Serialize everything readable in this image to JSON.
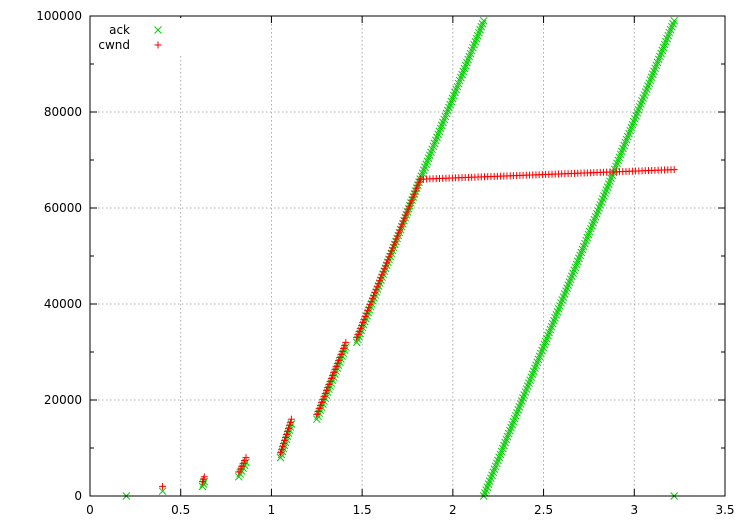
{
  "chart_data": {
    "type": "scatter",
    "title": "",
    "xlabel": "",
    "ylabel": "",
    "xlim": [
      0,
      3.5
    ],
    "ylim": [
      0,
      100000
    ],
    "xticks": [
      "0",
      "0.5",
      "1",
      "1.5",
      "2",
      "2.5",
      "3",
      "3.5"
    ],
    "yticks": [
      "0",
      "20000",
      "40000",
      "60000",
      "80000",
      "100000"
    ],
    "grid": true,
    "legend": "top-left",
    "series": [
      {
        "name": "ack",
        "marker": "x",
        "color": "#00cc00",
        "segments": [
          {
            "x": [
              0.2
            ],
            "y": [
              0
            ]
          },
          {
            "x": [
              0.4
            ],
            "y": [
              1000
            ]
          },
          {
            "x": [
              0.62,
              0.63
            ],
            "y": [
              2000,
              3000
            ]
          },
          {
            "x": [
              0.82,
              0.86
            ],
            "y": [
              4000,
              7000
            ]
          },
          {
            "x": [
              1.05,
              1.11
            ],
            "y": [
              8000,
              15000
            ]
          },
          {
            "x": [
              1.25,
              1.41
            ],
            "y": [
              16000,
              31000
            ]
          },
          {
            "x": [
              1.47,
              1.82
            ],
            "y": [
              32000,
              66000
            ]
          },
          {
            "x": [
              1.82,
              2.17
            ],
            "y": [
              66000,
              99000
            ]
          },
          {
            "x": [
              2.17,
              3.22
            ],
            "y": [
              0,
              99000
            ]
          },
          {
            "x": [
              3.22
            ],
            "y": [
              0
            ]
          }
        ]
      },
      {
        "name": "cwnd",
        "marker": "+",
        "color": "#ff0000",
        "segments": [
          {
            "x": [
              0.4
            ],
            "y": [
              2000
            ]
          },
          {
            "x": [
              0.62,
              0.63
            ],
            "y": [
              3000,
              4000
            ]
          },
          {
            "x": [
              0.82,
              0.86
            ],
            "y": [
              5000,
              8000
            ]
          },
          {
            "x": [
              1.05,
              1.11
            ],
            "y": [
              9000,
              16000
            ]
          },
          {
            "x": [
              1.25,
              1.41
            ],
            "y": [
              17000,
              32000
            ]
          },
          {
            "x": [
              1.47,
              1.82
            ],
            "y": [
              33000,
              66000
            ]
          },
          {
            "x": [
              1.82,
              3.22
            ],
            "y": [
              66000,
              68000
            ]
          }
        ]
      }
    ]
  }
}
